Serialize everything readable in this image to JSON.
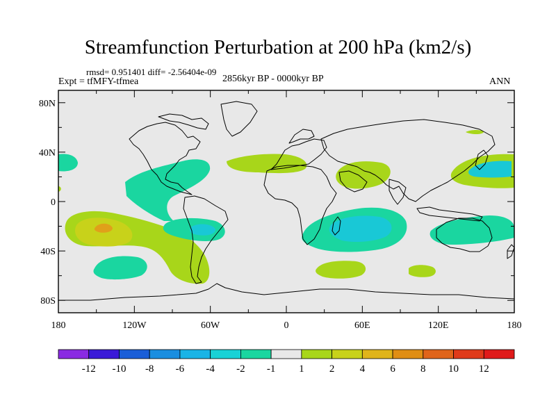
{
  "title": "Streamfunction Perturbation at 200 hPa (km2/s)",
  "stats": "rmsd= 0.951401 diff= -2.56404e-09",
  "expt": "Expt = tfMFY-tfmea",
  "period": "2856kyr BP - 0000kyr BP",
  "season": "ANN",
  "lat_labels": [
    "80N",
    "40N",
    "0",
    "40S",
    "80S"
  ],
  "lat_values": [
    80,
    40,
    0,
    -40,
    -80
  ],
  "lon_labels": [
    "180",
    "120W",
    "60W",
    "0",
    "60E",
    "120E",
    "180"
  ],
  "lon_values": [
    -180,
    -120,
    -60,
    0,
    60,
    120,
    180
  ],
  "colorbar": {
    "colors": [
      "#8a2be2",
      "#3a1ad8",
      "#1a5ed8",
      "#1a8ee0",
      "#1ab4e6",
      "#19d2d6",
      "#1ad6a0",
      "#e8e8e8",
      "#a8d61a",
      "#c8d21a",
      "#e0b41a",
      "#e08e14",
      "#e0641a",
      "#e03a1a",
      "#e01a1a"
    ],
    "labels": [
      "-12",
      "-10",
      "-8",
      "-6",
      "-4",
      "-2",
      "-1",
      "1",
      "2",
      "4",
      "6",
      "8",
      "10",
      "12"
    ]
  },
  "palette": {
    "bg": "#e8e8e8",
    "green": "#a8d61a",
    "teal": "#1ad6a0",
    "cyan": "#19c8d6",
    "yellow": "#c8d21a",
    "orange": "#e0a01a",
    "red_orange": "#e07a1a"
  }
}
